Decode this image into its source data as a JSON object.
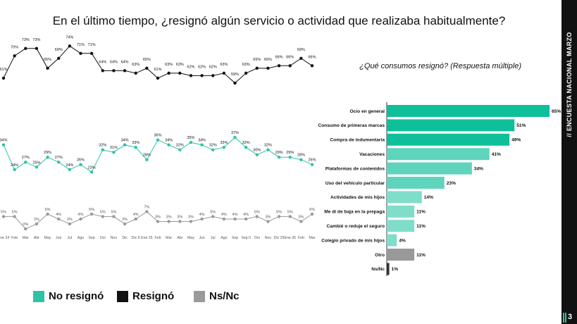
{
  "title": "En el último tiempo, ¿resignó algún servicio o actividad que realizaba habitualmente?",
  "sidebar": {
    "label": "// ENCUESTA NACIONAL MARZO",
    "page_number": "3"
  },
  "legend": [
    {
      "label": "No resignó",
      "color": "#2dc3a6"
    },
    {
      "label": "Resignó",
      "color": "#111111"
    },
    {
      "label": "Ns/Nc",
      "color": "#9a9a9a"
    }
  ],
  "chart_data": [
    {
      "type": "line",
      "x": [
        "Ene 24",
        "Feb",
        "Mar",
        "Abr",
        "May",
        "Jun",
        "Jul",
        "Ago",
        "Sep",
        "Oct",
        "Nov",
        "Dic",
        "Dic II",
        "Ene 25",
        "Feb",
        "Mar",
        "Abr",
        "May",
        "Jun",
        "Jul",
        "Ago",
        "Sep",
        "Sep II",
        "Oct",
        "Nov",
        "Dic 25",
        "Ene 26",
        "Feb",
        "Mar"
      ],
      "series": [
        {
          "name": "Resignó",
          "color": "#111111",
          "values": [
            61,
            70,
            73,
            73,
            65,
            69,
            74,
            71,
            71,
            64,
            64,
            64,
            63,
            65,
            61,
            63,
            63,
            62,
            62,
            62,
            63,
            59,
            63,
            65,
            65,
            66,
            66,
            69,
            66
          ]
        },
        {
          "name": "No resignó",
          "color": "#2dc3a6",
          "values": [
            34,
            24,
            27,
            25,
            29,
            27,
            24,
            26,
            23,
            32,
            31,
            34,
            33,
            28,
            36,
            34,
            32,
            35,
            34,
            32,
            33,
            37,
            33,
            30,
            32,
            29,
            29,
            28,
            26
          ]
        },
        {
          "name": "Ns/Nc",
          "color": "#9a9a9a",
          "values": [
            5,
            5,
            0,
            2,
            6,
            4,
            2,
            4,
            6,
            5,
            5,
            2,
            4,
            7,
            3,
            3,
            3,
            3,
            4,
            5,
            4,
            4,
            4,
            5,
            3,
            5,
            5,
            3,
            6
          ]
        }
      ]
    },
    {
      "type": "bar",
      "title": "¿Qué consumos resignó? (Respuesta múltiple)",
      "orientation": "horizontal",
      "categories": [
        "Ocio en general",
        "Consumo de primeras marcas",
        "Compra de indumentaria",
        "Vacaciones",
        "Plataformas de contenidos",
        "Uso del vehículo particular",
        "Actividades de mis hijos",
        "Me di de baja en la prepaga",
        "Cambié o reduje el seguro",
        "Colegio privado de mis hijos",
        "Otro",
        "Ns/Nc"
      ],
      "values": [
        65,
        51,
        49,
        41,
        34,
        23,
        14,
        11,
        11,
        4,
        11,
        1
      ],
      "colors": [
        "#0fbf9a",
        "#0fbf9a",
        "#0fbf9a",
        "#5fd4bc",
        "#5fd4bc",
        "#5fd4bc",
        "#7fddc9",
        "#7fddc9",
        "#7fddc9",
        "#7fddc9",
        "#999999",
        "#333333"
      ],
      "value_suffix": "%"
    }
  ]
}
